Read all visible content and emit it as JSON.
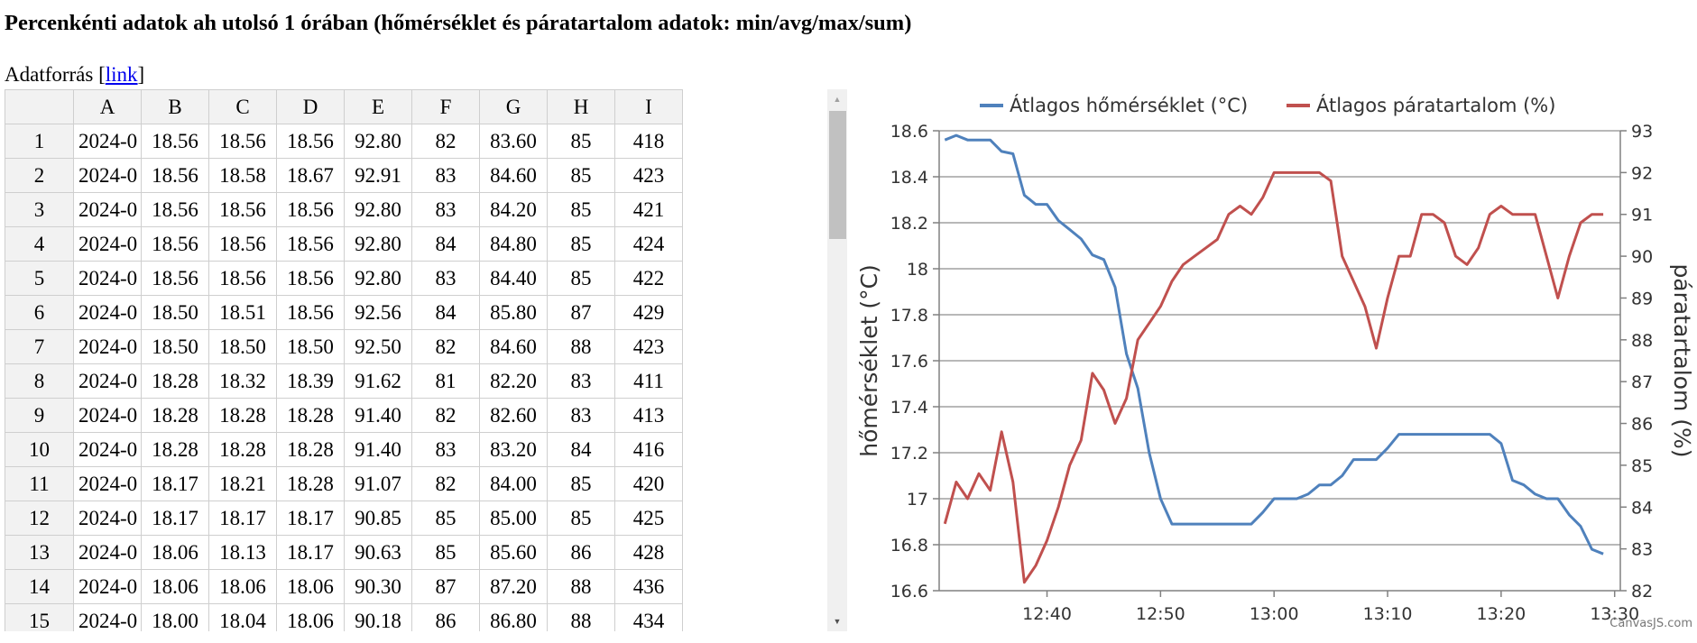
{
  "page": {
    "title": "Percenkénti adatok ah utolsó 1 órában (hőmérséklet és páratartalom adatok: min/avg/max/sum)",
    "source_label": "Adatforrás [",
    "source_link": "link",
    "source_suffix": "]"
  },
  "table": {
    "columns": [
      "",
      "A",
      "B",
      "C",
      "D",
      "E",
      "F",
      "G",
      "H",
      "I"
    ],
    "rows": [
      [
        "1",
        "2024-0",
        "18.56",
        "18.56",
        "18.56",
        "92.80",
        "82",
        "83.60",
        "85",
        "418"
      ],
      [
        "2",
        "2024-0",
        "18.56",
        "18.58",
        "18.67",
        "92.91",
        "83",
        "84.60",
        "85",
        "423"
      ],
      [
        "3",
        "2024-0",
        "18.56",
        "18.56",
        "18.56",
        "92.80",
        "83",
        "84.20",
        "85",
        "421"
      ],
      [
        "4",
        "2024-0",
        "18.56",
        "18.56",
        "18.56",
        "92.80",
        "84",
        "84.80",
        "85",
        "424"
      ],
      [
        "5",
        "2024-0",
        "18.56",
        "18.56",
        "18.56",
        "92.80",
        "83",
        "84.40",
        "85",
        "422"
      ],
      [
        "6",
        "2024-0",
        "18.50",
        "18.51",
        "18.56",
        "92.56",
        "84",
        "85.80",
        "87",
        "429"
      ],
      [
        "7",
        "2024-0",
        "18.50",
        "18.50",
        "18.50",
        "92.50",
        "82",
        "84.60",
        "88",
        "423"
      ],
      [
        "8",
        "2024-0",
        "18.28",
        "18.32",
        "18.39",
        "91.62",
        "81",
        "82.20",
        "83",
        "411"
      ],
      [
        "9",
        "2024-0",
        "18.28",
        "18.28",
        "18.28",
        "91.40",
        "82",
        "82.60",
        "83",
        "413"
      ],
      [
        "10",
        "2024-0",
        "18.28",
        "18.28",
        "18.28",
        "91.40",
        "83",
        "83.20",
        "84",
        "416"
      ],
      [
        "11",
        "2024-0",
        "18.17",
        "18.21",
        "18.28",
        "91.07",
        "82",
        "84.00",
        "85",
        "420"
      ],
      [
        "12",
        "2024-0",
        "18.17",
        "18.17",
        "18.17",
        "90.85",
        "85",
        "85.00",
        "85",
        "425"
      ],
      [
        "13",
        "2024-0",
        "18.06",
        "18.13",
        "18.17",
        "90.63",
        "85",
        "85.60",
        "86",
        "428"
      ],
      [
        "14",
        "2024-0",
        "18.06",
        "18.06",
        "18.06",
        "90.30",
        "87",
        "87.20",
        "88",
        "436"
      ],
      [
        "15",
        "2024-0",
        "18.00",
        "18.04",
        "18.06",
        "90.18",
        "86",
        "86.80",
        "88",
        "434"
      ]
    ]
  },
  "scrollbar": {
    "up_icon": "▲",
    "down_icon": "▼"
  },
  "colors": {
    "temperature": "#4f81bc",
    "humidity": "#c0504e",
    "grid": "#a0a0a0",
    "axis": "#808080"
  },
  "chart_data": {
    "type": "line",
    "title": "",
    "legend": [
      "Átlagos hőmérséklet (°C)",
      "Átlagos páratartalom (%)"
    ],
    "legend_position": "top",
    "xlabel": "",
    "ylabel": "hőmérséklet (°C)",
    "y2label": "páratartalom (%)",
    "ylim": [
      16.6,
      18.6
    ],
    "y2lim": [
      82,
      93
    ],
    "yticks": [
      "18.6",
      "18.4",
      "18.2",
      "18",
      "17.8",
      "17.6",
      "17.4",
      "17.2",
      "17",
      "16.8",
      "16.6"
    ],
    "y2ticks": [
      "93",
      "92",
      "91",
      "90",
      "89",
      "88",
      "87",
      "86",
      "85",
      "84",
      "83",
      "82"
    ],
    "xticks": [
      "12:40",
      "12:50",
      "13:00",
      "13:10",
      "13:20",
      "13:30"
    ],
    "x_range": [
      "12:30.5",
      "13:30.5"
    ],
    "grid": true,
    "credit": "CanvasJS.com",
    "x_start_minute": 751,
    "series": [
      {
        "name": "Átlagos hőmérséklet (°C)",
        "axis": "left",
        "values": [
          18.56,
          18.58,
          18.56,
          18.56,
          18.56,
          18.51,
          18.5,
          18.32,
          18.28,
          18.28,
          18.21,
          18.17,
          18.13,
          18.06,
          18.04,
          17.92,
          17.63,
          17.48,
          17.2,
          17.0,
          16.89,
          16.89,
          16.89,
          16.89,
          16.89,
          16.89,
          16.89,
          16.89,
          16.94,
          17.0,
          17.0,
          17.0,
          17.02,
          17.06,
          17.06,
          17.1,
          17.17,
          17.17,
          17.17,
          17.22,
          17.28,
          17.28,
          17.28,
          17.28,
          17.28,
          17.28,
          17.28,
          17.28,
          17.28,
          17.24,
          17.08,
          17.06,
          17.02,
          17.0,
          17.0,
          16.93,
          16.88,
          16.78,
          16.76
        ]
      },
      {
        "name": "Átlagos páratartalom (%)",
        "axis": "right",
        "values": [
          83.6,
          84.6,
          84.2,
          84.8,
          84.4,
          85.8,
          84.6,
          82.2,
          82.6,
          83.2,
          84.0,
          85.0,
          85.6,
          87.2,
          86.8,
          86.0,
          86.6,
          88.0,
          88.4,
          88.8,
          89.4,
          89.8,
          90.0,
          90.2,
          90.4,
          91.0,
          91.2,
          91.0,
          91.4,
          92.0,
          92.0,
          92.0,
          92.0,
          92.0,
          91.8,
          90.0,
          89.4,
          88.8,
          87.8,
          89.0,
          90.0,
          90.0,
          91.0,
          91.0,
          90.8,
          90.0,
          89.8,
          90.2,
          91.0,
          91.2,
          91.0,
          91.0,
          91.0,
          90.0,
          89.0,
          90.0,
          90.8,
          91.0,
          91.0
        ]
      }
    ]
  }
}
